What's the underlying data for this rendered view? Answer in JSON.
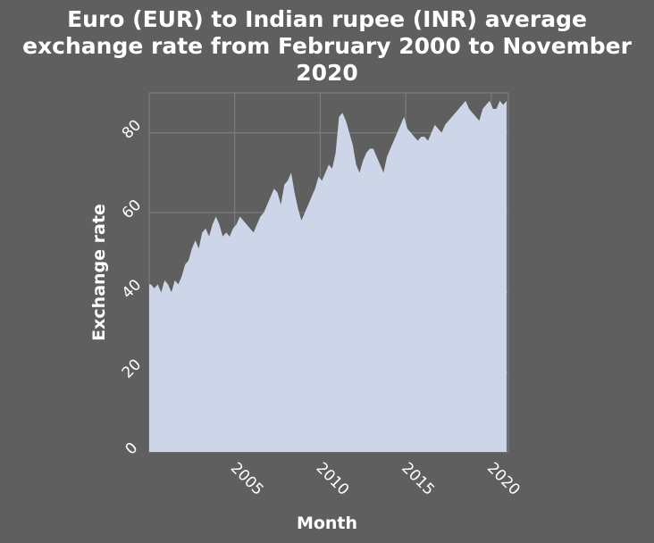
{
  "chart_data": {
    "type": "area",
    "title_lines": [
      "Euro (EUR) to Indian rupee (INR) average",
      "exchange rate from February 2000 to November",
      "2020"
    ],
    "xlabel": "Month",
    "ylabel": "Exchange rate",
    "xlim": [
      2000.0,
      2021.0
    ],
    "ylim": [
      0,
      90
    ],
    "x_ticks": [
      2005,
      2010,
      2015,
      2020
    ],
    "y_ticks": [
      0,
      20,
      40,
      60,
      80
    ],
    "grid": true,
    "legend": "none",
    "colors": {
      "background": "#5f5f5f",
      "plot_area": "#ccd6e8",
      "grid": "#7a7a7a",
      "text": "#ffffff"
    },
    "series": [
      {
        "x": [
          2000.1,
          2000.3,
          2000.5,
          2000.7,
          2000.9,
          2001.1,
          2001.3,
          2001.5,
          2001.7,
          2001.9,
          2002.1,
          2002.3,
          2002.5,
          2002.7,
          2002.9,
          2003.1,
          2003.3,
          2003.5,
          2003.7,
          2003.9,
          2004.1,
          2004.3,
          2004.5,
          2004.7,
          2004.9,
          2005.1,
          2005.3,
          2005.5,
          2005.7,
          2005.9,
          2006.1,
          2006.3,
          2006.5,
          2006.7,
          2006.9,
          2007.1,
          2007.3,
          2007.5,
          2007.7,
          2007.9,
          2008.1,
          2008.3,
          2008.5,
          2008.7,
          2008.9,
          2009.1,
          2009.3,
          2009.5,
          2009.7,
          2009.9,
          2010.1,
          2010.3,
          2010.5,
          2010.7,
          2010.9,
          2011.1,
          2011.3,
          2011.5,
          2011.7,
          2011.9,
          2012.1,
          2012.3,
          2012.5,
          2012.7,
          2012.9,
          2013.1,
          2013.3,
          2013.5,
          2013.7,
          2013.9,
          2014.1,
          2014.3,
          2014.5,
          2014.7,
          2014.9,
          2015.1,
          2015.3,
          2015.5,
          2015.7,
          2015.9,
          2016.1,
          2016.3,
          2016.5,
          2016.7,
          2016.9,
          2017.1,
          2017.3,
          2017.5,
          2017.7,
          2017.9,
          2018.1,
          2018.3,
          2018.5,
          2018.7,
          2018.9,
          2019.1,
          2019.3,
          2019.5,
          2019.7,
          2019.9,
          2020.1,
          2020.3,
          2020.5,
          2020.7,
          2020.9
        ],
        "values": [
          42,
          41,
          42,
          40,
          43,
          42,
          40,
          43,
          42,
          44,
          47,
          48,
          51,
          53,
          51,
          55,
          56,
          54,
          57,
          59,
          57,
          54,
          55,
          54,
          56,
          57,
          59,
          58,
          57,
          56,
          55,
          57,
          59,
          60,
          62,
          64,
          66,
          65,
          62,
          67,
          68,
          70,
          65,
          61,
          58,
          60,
          62,
          64,
          66,
          69,
          68,
          70,
          72,
          71,
          75,
          84,
          85,
          83,
          80,
          77,
          72,
          70,
          73,
          75,
          76,
          76,
          74,
          72,
          70,
          74,
          76,
          78,
          80,
          82,
          84,
          81,
          80,
          79,
          78,
          79,
          79,
          78,
          80,
          82,
          81,
          80,
          82,
          83,
          84,
          85,
          86,
          87,
          88,
          86,
          85,
          84,
          83,
          86,
          87,
          88,
          86,
          86,
          88,
          87,
          88
        ]
      }
    ]
  }
}
